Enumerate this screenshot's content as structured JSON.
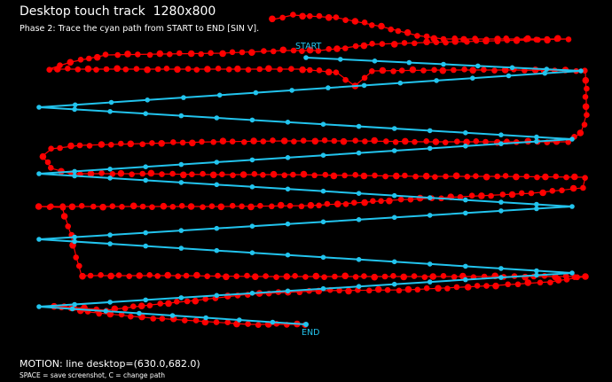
{
  "header": {
    "title": "Desktop touch track  1280x800",
    "instruction": "Phase 2: Trace the cyan path from START to END [SIN V]."
  },
  "path": {
    "start_label": "START",
    "end_label": "END"
  },
  "status": {
    "motion": "MOTION: line desktop=(630.0,682.0)",
    "hint": "SPACE = save screenshot, C = change path"
  },
  "colors": {
    "background": "#000000",
    "target_path": "#22c4ee",
    "touch_trace": "#ff0000",
    "text": "#ffffff"
  }
}
